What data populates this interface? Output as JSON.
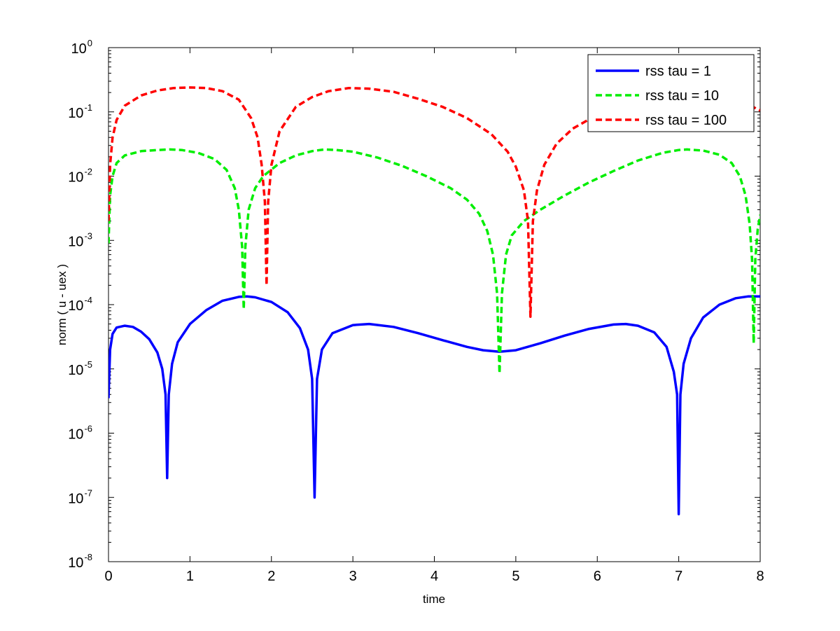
{
  "chart_data": {
    "type": "line",
    "xlabel": "time",
    "ylabel": "norm ( u - uex )",
    "xlim": [
      0,
      8
    ],
    "ylim": [
      1e-08,
      1
    ],
    "yscale": "log",
    "grid": false,
    "legend_position": "top-right",
    "x_ticks": [
      "0",
      "1",
      "2",
      "3",
      "4",
      "5",
      "6",
      "7",
      "8"
    ],
    "y_ticks": [
      {
        "base": "10",
        "exp": "0"
      },
      {
        "base": "10",
        "exp": "-1"
      },
      {
        "base": "10",
        "exp": "-2"
      },
      {
        "base": "10",
        "exp": "-3"
      },
      {
        "base": "10",
        "exp": "-4"
      },
      {
        "base": "10",
        "exp": "-5"
      },
      {
        "base": "10",
        "exp": "-6"
      },
      {
        "base": "10",
        "exp": "-7"
      },
      {
        "base": "10",
        "exp": "-8"
      }
    ],
    "series": [
      {
        "name": "rss tau = 1",
        "color": "#0000ff",
        "style": "solid",
        "points": [
          [
            0.0,
            3.5e-06
          ],
          [
            0.02,
            2e-05
          ],
          [
            0.05,
            3.5e-05
          ],
          [
            0.1,
            4.4e-05
          ],
          [
            0.2,
            4.7e-05
          ],
          [
            0.3,
            4.5e-05
          ],
          [
            0.4,
            3.8e-05
          ],
          [
            0.5,
            2.9e-05
          ],
          [
            0.6,
            1.8e-05
          ],
          [
            0.66,
            1e-05
          ],
          [
            0.7,
            4e-06
          ],
          [
            0.72,
            2e-07
          ],
          [
            0.74,
            4e-06
          ],
          [
            0.78,
            1.2e-05
          ],
          [
            0.85,
            2.6e-05
          ],
          [
            1.0,
            5e-05
          ],
          [
            1.2,
            8.2e-05
          ],
          [
            1.4,
            0.000115
          ],
          [
            1.6,
            0.000132
          ],
          [
            1.7,
            0.000134
          ],
          [
            1.8,
            0.00013
          ],
          [
            2.0,
            0.00011
          ],
          [
            2.2,
            7.6e-05
          ],
          [
            2.35,
            4.3e-05
          ],
          [
            2.45,
            2e-05
          ],
          [
            2.5,
            7e-06
          ],
          [
            2.53,
            1e-07
          ],
          [
            2.56,
            7e-06
          ],
          [
            2.62,
            2e-05
          ],
          [
            2.75,
            3.6e-05
          ],
          [
            3.0,
            4.8e-05
          ],
          [
            3.2,
            5e-05
          ],
          [
            3.5,
            4.5e-05
          ],
          [
            3.8,
            3.6e-05
          ],
          [
            4.1,
            2.8e-05
          ],
          [
            4.4,
            2.2e-05
          ],
          [
            4.6,
            1.95e-05
          ],
          [
            4.8,
            1.85e-05
          ],
          [
            5.0,
            1.95e-05
          ],
          [
            5.3,
            2.5e-05
          ],
          [
            5.6,
            3.3e-05
          ],
          [
            5.9,
            4.2e-05
          ],
          [
            6.2,
            4.9e-05
          ],
          [
            6.35,
            5e-05
          ],
          [
            6.5,
            4.7e-05
          ],
          [
            6.7,
            3.7e-05
          ],
          [
            6.85,
            2.2e-05
          ],
          [
            6.94,
            9e-06
          ],
          [
            6.98,
            4e-06
          ],
          [
            7.0,
            5.5e-08
          ],
          [
            7.02,
            4e-06
          ],
          [
            7.06,
            1.2e-05
          ],
          [
            7.15,
            3e-05
          ],
          [
            7.3,
            6.3e-05
          ],
          [
            7.5,
            0.0001
          ],
          [
            7.7,
            0.000126
          ],
          [
            7.85,
            0.000134
          ],
          [
            8.0,
            0.000134
          ]
        ]
      },
      {
        "name": "rss tau = 10",
        "color": "#00ee00",
        "style": "dashed",
        "points": [
          [
            0.0,
            0.0009
          ],
          [
            0.02,
            0.005
          ],
          [
            0.05,
            0.01
          ],
          [
            0.1,
            0.016
          ],
          [
            0.2,
            0.021
          ],
          [
            0.4,
            0.0245
          ],
          [
            0.6,
            0.0255
          ],
          [
            0.75,
            0.026
          ],
          [
            0.9,
            0.0255
          ],
          [
            1.1,
            0.023
          ],
          [
            1.3,
            0.0185
          ],
          [
            1.45,
            0.0125
          ],
          [
            1.55,
            0.0065
          ],
          [
            1.6,
            0.003
          ],
          [
            1.64,
            0.0008
          ],
          [
            1.66,
            8.5e-05
          ],
          [
            1.68,
            0.0008
          ],
          [
            1.72,
            0.003
          ],
          [
            1.8,
            0.0065
          ],
          [
            1.9,
            0.01
          ],
          [
            2.1,
            0.016
          ],
          [
            2.3,
            0.021
          ],
          [
            2.5,
            0.0245
          ],
          [
            2.65,
            0.026
          ],
          [
            2.8,
            0.0255
          ],
          [
            3.0,
            0.024
          ],
          [
            3.3,
            0.0195
          ],
          [
            3.6,
            0.0145
          ],
          [
            3.9,
            0.01
          ],
          [
            4.2,
            0.0065
          ],
          [
            4.4,
            0.0043
          ],
          [
            4.55,
            0.0026
          ],
          [
            4.65,
            0.0014
          ],
          [
            4.72,
            0.0006
          ],
          [
            4.77,
            0.00015
          ],
          [
            4.8,
            8.5e-06
          ],
          [
            4.83,
            0.00015
          ],
          [
            4.88,
            0.0006
          ],
          [
            4.95,
            0.0012
          ],
          [
            5.1,
            0.002
          ],
          [
            5.3,
            0.003
          ],
          [
            5.6,
            0.005
          ],
          [
            5.9,
            0.008
          ],
          [
            6.2,
            0.012
          ],
          [
            6.5,
            0.0175
          ],
          [
            6.8,
            0.023
          ],
          [
            7.0,
            0.0255
          ],
          [
            7.1,
            0.026
          ],
          [
            7.3,
            0.025
          ],
          [
            7.5,
            0.0215
          ],
          [
            7.65,
            0.016
          ],
          [
            7.75,
            0.01
          ],
          [
            7.82,
            0.005
          ],
          [
            7.87,
            0.0018
          ],
          [
            7.9,
            0.0005
          ],
          [
            7.92,
            2.5e-05
          ],
          [
            7.94,
            0.0005
          ],
          [
            7.97,
            0.0015
          ],
          [
            8.0,
            0.0025
          ]
        ]
      },
      {
        "name": "rss tau = 100",
        "color": "#ff0000",
        "style": "dashed",
        "points": [
          [
            0.0,
            0.002
          ],
          [
            0.02,
            0.015
          ],
          [
            0.05,
            0.04
          ],
          [
            0.1,
            0.075
          ],
          [
            0.2,
            0.125
          ],
          [
            0.4,
            0.18
          ],
          [
            0.6,
            0.215
          ],
          [
            0.8,
            0.235
          ],
          [
            1.0,
            0.24
          ],
          [
            1.2,
            0.235
          ],
          [
            1.4,
            0.21
          ],
          [
            1.6,
            0.155
          ],
          [
            1.75,
            0.08
          ],
          [
            1.83,
            0.04
          ],
          [
            1.88,
            0.015
          ],
          [
            1.92,
            0.004
          ],
          [
            1.94,
            0.0002
          ],
          [
            1.96,
            0.004
          ],
          [
            2.0,
            0.015
          ],
          [
            2.1,
            0.05
          ],
          [
            2.3,
            0.12
          ],
          [
            2.5,
            0.17
          ],
          [
            2.7,
            0.21
          ],
          [
            2.95,
            0.235
          ],
          [
            3.2,
            0.23
          ],
          [
            3.5,
            0.205
          ],
          [
            3.8,
            0.16
          ],
          [
            4.1,
            0.12
          ],
          [
            4.4,
            0.08
          ],
          [
            4.7,
            0.045
          ],
          [
            4.9,
            0.024
          ],
          [
            5.0,
            0.014
          ],
          [
            5.1,
            0.006
          ],
          [
            5.15,
            0.002
          ],
          [
            5.18,
            6.5e-05
          ],
          [
            5.21,
            0.002
          ],
          [
            5.26,
            0.006
          ],
          [
            5.35,
            0.015
          ],
          [
            5.5,
            0.032
          ],
          [
            5.7,
            0.055
          ],
          [
            6.0,
            0.09
          ],
          [
            6.3,
            0.13
          ],
          [
            6.6,
            0.165
          ],
          [
            6.9,
            0.19
          ],
          [
            7.2,
            0.2
          ],
          [
            7.5,
            0.185
          ],
          [
            7.8,
            0.14
          ],
          [
            8.0,
            0.105
          ]
        ]
      }
    ]
  }
}
